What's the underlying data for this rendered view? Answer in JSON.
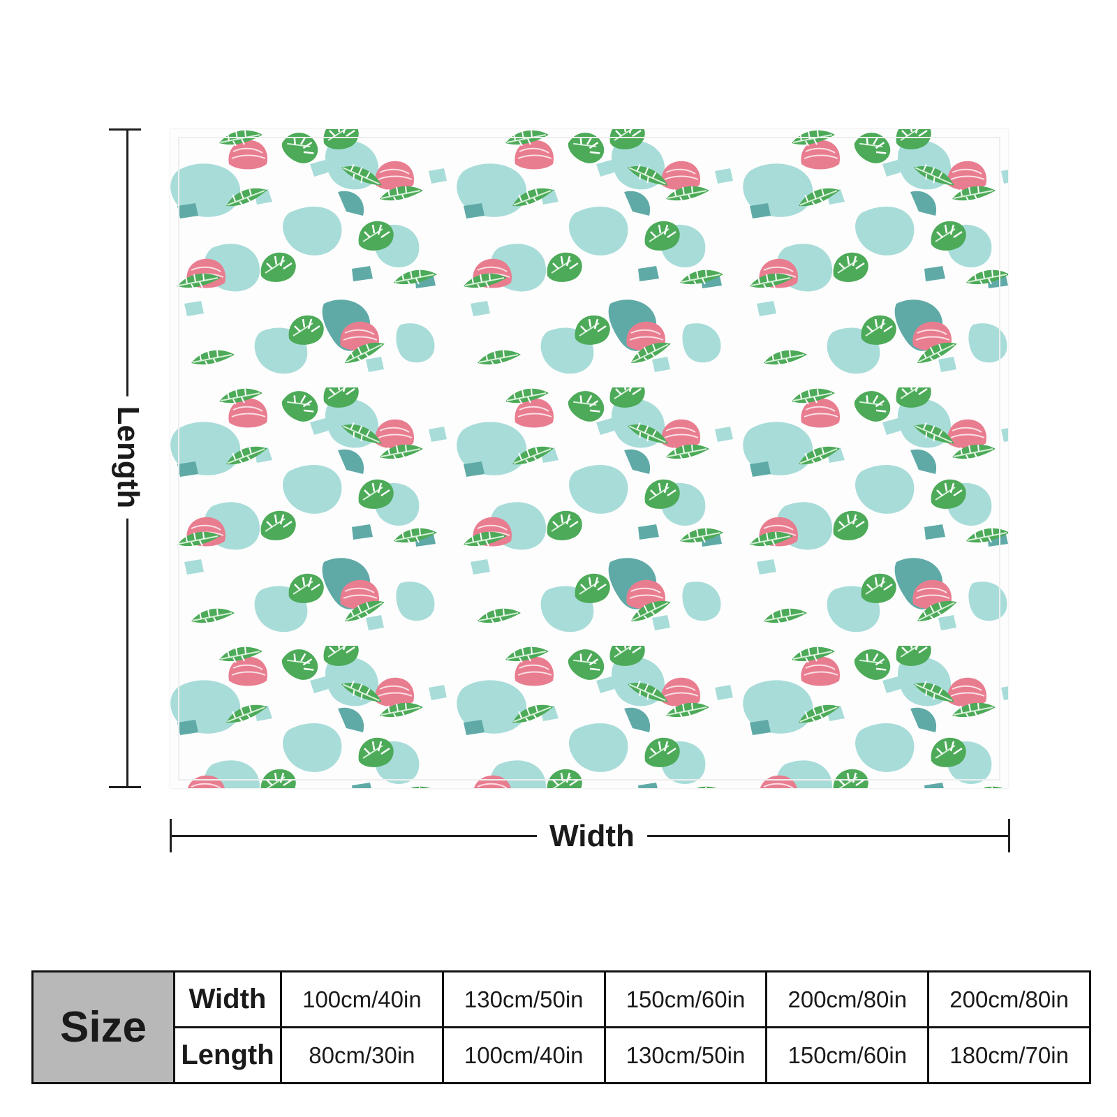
{
  "dimensions": {
    "length_label": "Length",
    "width_label": "Width"
  },
  "size_table": {
    "header": "Size",
    "rows": [
      {
        "label": "Width",
        "values": [
          "100cm/40in",
          "130cm/50in",
          "150cm/60in",
          "200cm/80in",
          "200cm/80in"
        ]
      },
      {
        "label": "Length",
        "values": [
          "80cm/30in",
          "100cm/40in",
          "130cm/50in",
          "150cm/60in",
          "180cm/70in"
        ]
      }
    ]
  },
  "colors": {
    "teal_light": "#a8dcd9",
    "teal_dark": "#5faaa7",
    "leaf_green": "#4caa58",
    "leaf_dark": "#2f8a44",
    "flower_pink": "#e97d90",
    "table_header_gray": "#b8b8b8"
  }
}
